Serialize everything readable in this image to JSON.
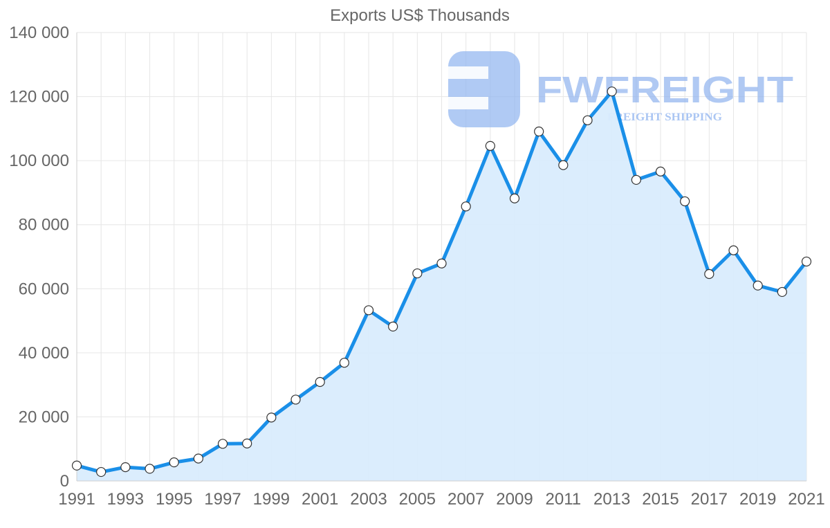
{
  "chart_data": {
    "type": "area",
    "title": "Exports US$ Thousands",
    "xlabel": "",
    "ylabel": "",
    "ylim": [
      0,
      140000
    ],
    "y_ticks": [
      0,
      20000,
      40000,
      60000,
      80000,
      100000,
      120000,
      140000
    ],
    "y_tick_labels": [
      "0",
      "20 000",
      "40 000",
      "60 000",
      "80 000",
      "100 000",
      "120 000",
      "140 000"
    ],
    "x_tick_labels": [
      "1991",
      "1993",
      "1995",
      "1997",
      "1999",
      "2001",
      "2003",
      "2005",
      "2007",
      "2009",
      "2011",
      "2013",
      "2015",
      "2017",
      "2019",
      "2021"
    ],
    "grid": true,
    "legend": "none",
    "series": [
      {
        "name": "Exports US$ Thousands",
        "x": [
          1991,
          1992,
          1993,
          1994,
          1995,
          1996,
          1997,
          1998,
          1999,
          2000,
          2001,
          2002,
          2003,
          2004,
          2005,
          2006,
          2007,
          2008,
          2009,
          2010,
          2011,
          2012,
          2013,
          2014,
          2015,
          2016,
          2017,
          2018,
          2019,
          2020,
          2021
        ],
        "values": [
          4800,
          2800,
          4300,
          3800,
          5800,
          7000,
          11600,
          11700,
          19800,
          25400,
          30900,
          36900,
          53300,
          48200,
          64800,
          67900,
          85700,
          104600,
          88200,
          109100,
          98600,
          112600,
          121600,
          94000,
          96600,
          87300,
          64600,
          72000,
          61000,
          59000,
          68500
        ]
      }
    ],
    "colors": {
      "line": "#1a8fe8",
      "fill": "#d9ecfd",
      "grid": "#e6e6e6",
      "text": "#666666"
    }
  },
  "watermark": {
    "name": "FWFREIGHT",
    "tagline": "FREIGHT SHIPPING",
    "color": "#8fb3ef"
  }
}
